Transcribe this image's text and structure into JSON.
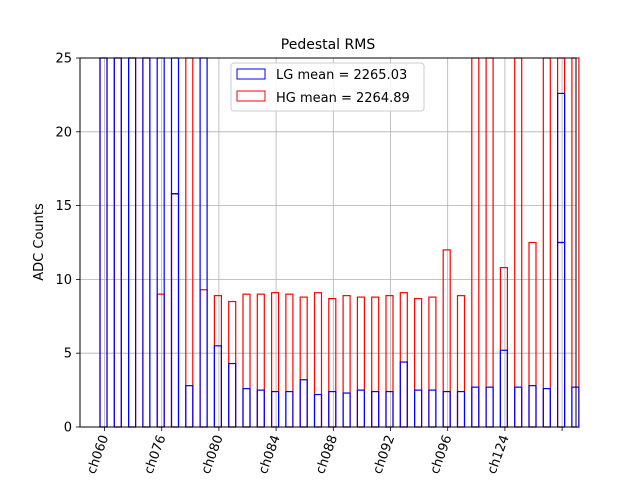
{
  "chart_data": {
    "type": "bar",
    "title": "Pedestal RMS",
    "xlabel": "",
    "ylabel": "ADC Counts",
    "ylim": [
      0,
      25
    ],
    "yticks": [
      0,
      5,
      10,
      15,
      20,
      25
    ],
    "grid": true,
    "legend_placement": "top-center",
    "x_tick_labels": [
      "ch060",
      "ch076",
      "ch080",
      "ch084",
      "ch088",
      "ch092",
      "ch096",
      "ch124"
    ],
    "x_tick_label_rotation": -70,
    "series": [
      {
        "name": "LG mean = 2265.03",
        "color": "#0000ff",
        "values": [
          25,
          25,
          25,
          25,
          25,
          15.8,
          2.8,
          25,
          5.5,
          4.3,
          2.6,
          2.5,
          2.4,
          2.4,
          3.2,
          2.2,
          2.4,
          2.3,
          2.5,
          2.4,
          2.4,
          4.4,
          2.5,
          2.5,
          2.4,
          2.4,
          2.7,
          2.7,
          5.2,
          2.7,
          2.8,
          2.6,
          12.5,
          2.7
        ]
      },
      {
        "name": "HG mean = 2264.89",
        "color": "#ff0000",
        "values": [
          25,
          25,
          25,
          25,
          9.0,
          15.8,
          25,
          9.3,
          8.9,
          8.5,
          9.0,
          9.0,
          9.1,
          9.0,
          8.8,
          9.1,
          8.7,
          8.9,
          8.8,
          8.8,
          8.9,
          9.1,
          8.7,
          8.8,
          12.0,
          8.9,
          25,
          25,
          10.8,
          25,
          12.5,
          25,
          25,
          25
        ]
      }
    ],
    "upper_edges": [
      {
        "series": 0,
        "i": 5,
        "value": 25
      },
      {
        "series": 0,
        "i": 32,
        "value": 22.6
      }
    ]
  }
}
